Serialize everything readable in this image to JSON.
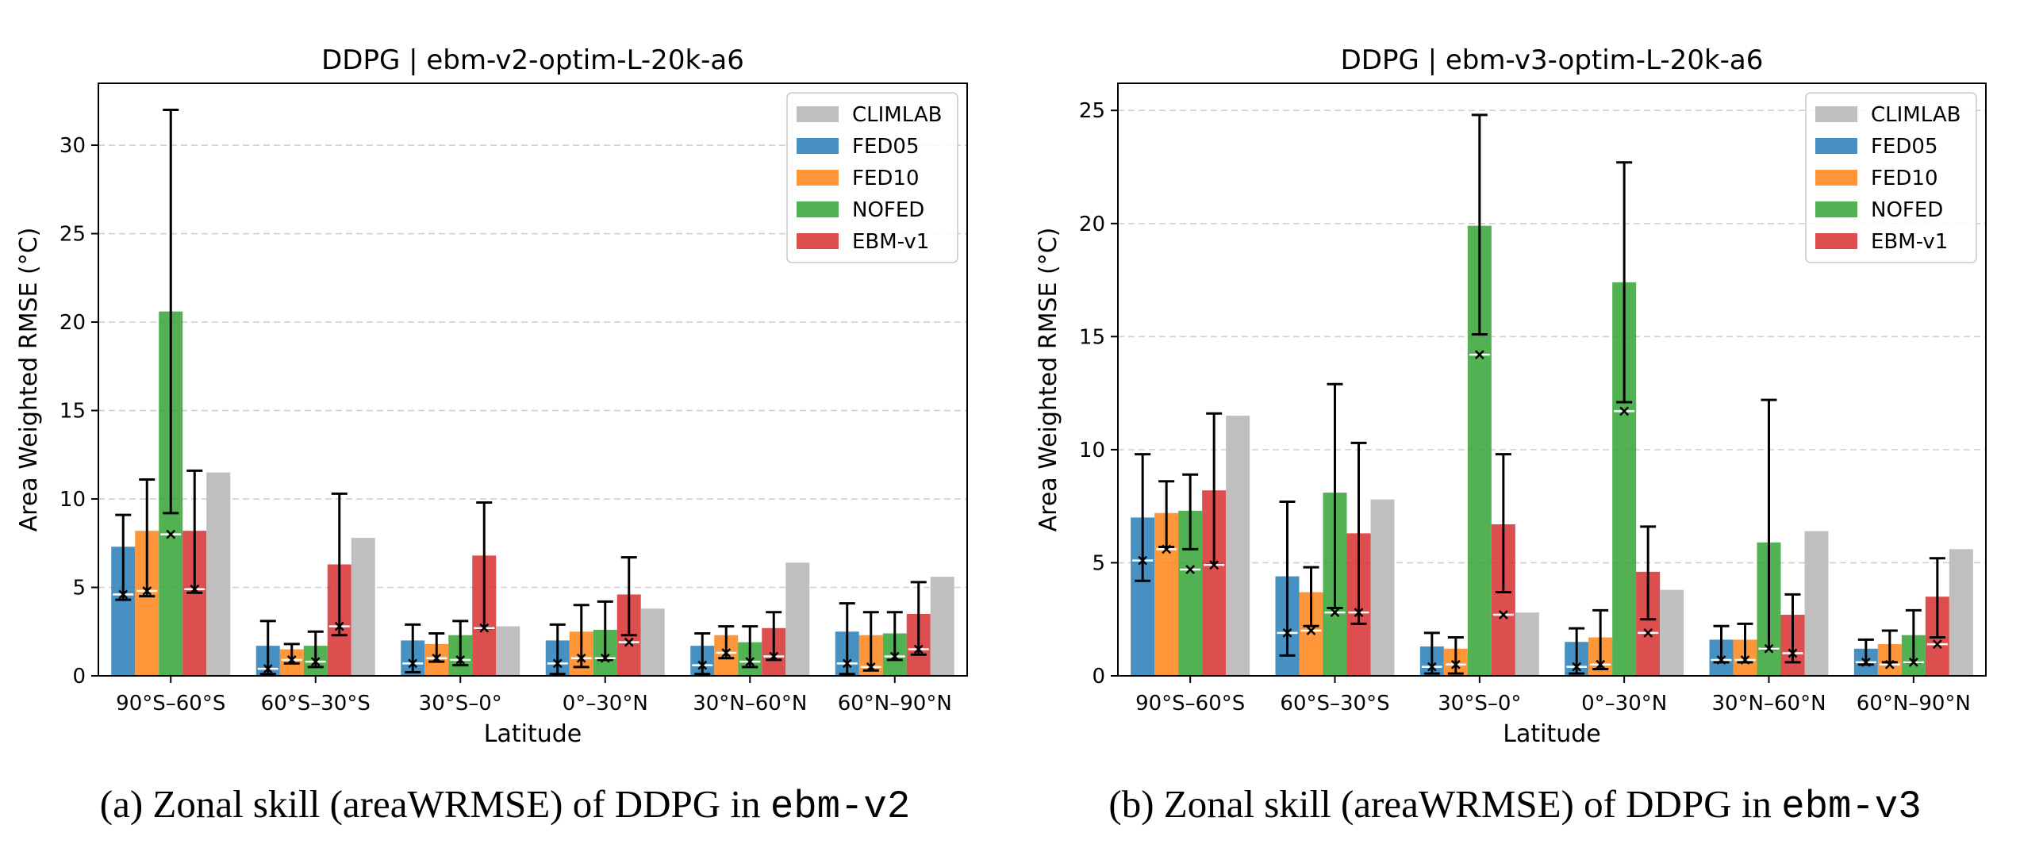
{
  "chart_data": [
    {
      "type": "bar",
      "title": "DDPG | ebm-v2-optim-L-20k-a6",
      "xlabel": "Latitude",
      "ylabel": "Area Weighted RMSE (°C)",
      "ylim": [
        0,
        33.5
      ],
      "yticks": [
        0,
        5,
        10,
        15,
        20,
        25,
        30
      ],
      "grid": "y-dashed",
      "legend_position": "top-right",
      "categories": [
        "90°S–60°S",
        "60°S–30°S",
        "30°S–0°",
        "0°–30°N",
        "30°N–60°N",
        "60°N–90°N"
      ],
      "series": [
        {
          "name": "FED05",
          "color": "#1f77b4",
          "values": [
            7.3,
            1.7,
            2.0,
            2.0,
            1.7,
            2.5
          ],
          "err_low": [
            4.3,
            0.1,
            0.2,
            0.1,
            0.1,
            0.1
          ],
          "err_high": [
            9.1,
            3.1,
            2.9,
            2.9,
            2.4,
            4.1
          ],
          "median": [
            4.6,
            0.4,
            0.7,
            0.7,
            0.6,
            0.7
          ]
        },
        {
          "name": "FED10",
          "color": "#ff7f0e",
          "values": [
            8.2,
            1.5,
            1.8,
            2.5,
            2.3,
            2.3
          ],
          "err_low": [
            4.5,
            0.7,
            0.8,
            0.5,
            1.0,
            0.3
          ],
          "err_high": [
            11.1,
            1.8,
            2.4,
            4.0,
            2.8,
            3.6
          ],
          "median": [
            4.8,
            0.9,
            1.0,
            1.0,
            1.3,
            0.5
          ]
        },
        {
          "name": "NOFED",
          "color": "#2ca02c",
          "values": [
            20.6,
            1.7,
            2.3,
            2.6,
            1.9,
            2.4
          ],
          "err_low": [
            9.2,
            0.5,
            0.6,
            0.9,
            0.5,
            0.9
          ],
          "err_high": [
            32.0,
            2.5,
            3.1,
            4.2,
            2.8,
            3.6
          ],
          "median": [
            8.0,
            0.8,
            0.9,
            1.0,
            0.8,
            1.1
          ]
        },
        {
          "name": "EBM-v1",
          "color": "#d62728",
          "values": [
            8.2,
            6.3,
            6.8,
            4.6,
            2.7,
            3.5
          ],
          "err_low": [
            4.7,
            2.3,
            2.7,
            2.3,
            0.9,
            1.2
          ],
          "err_high": [
            11.6,
            10.3,
            9.8,
            6.7,
            3.6,
            5.3
          ],
          "median": [
            4.9,
            2.8,
            2.7,
            1.9,
            1.1,
            1.5
          ]
        },
        {
          "name": "CLIMLAB",
          "color": "#bfbfbf",
          "values": [
            11.5,
            7.8,
            2.8,
            3.8,
            6.4,
            5.6
          ]
        }
      ]
    },
    {
      "type": "bar",
      "title": "DDPG | ebm-v3-optim-L-20k-a6",
      "xlabel": "Latitude",
      "ylabel": "Area Weighted RMSE (°C)",
      "ylim": [
        0,
        26.2
      ],
      "yticks": [
        0,
        5,
        10,
        15,
        20,
        25
      ],
      "grid": "y-dashed",
      "legend_position": "top-right",
      "categories": [
        "90°S–60°S",
        "60°S–30°S",
        "30°S–0°",
        "0°–30°N",
        "30°N–60°N",
        "60°N–90°N"
      ],
      "series": [
        {
          "name": "FED05",
          "color": "#1f77b4",
          "values": [
            7.0,
            4.4,
            1.3,
            1.5,
            1.6,
            1.2
          ],
          "err_low": [
            4.2,
            0.9,
            0.1,
            0.1,
            0.6,
            0.5
          ],
          "err_high": [
            9.8,
            7.7,
            1.9,
            2.1,
            2.2,
            1.6
          ],
          "median": [
            5.1,
            1.9,
            0.4,
            0.4,
            0.7,
            0.6
          ]
        },
        {
          "name": "FED10",
          "color": "#ff7f0e",
          "values": [
            7.2,
            3.7,
            1.2,
            1.7,
            1.6,
            1.4
          ],
          "err_low": [
            5.7,
            2.2,
            0.1,
            0.3,
            0.6,
            0.6
          ],
          "err_high": [
            8.6,
            4.8,
            1.7,
            2.9,
            2.3,
            2.0
          ],
          "median": [
            5.6,
            2.0,
            0.5,
            0.5,
            0.7,
            0.5
          ]
        },
        {
          "name": "NOFED",
          "color": "#2ca02c",
          "values": [
            7.3,
            8.1,
            19.9,
            17.4,
            5.9,
            1.8
          ],
          "err_low": [
            5.6,
            3.0,
            15.1,
            12.1,
            1.2,
            0.6
          ],
          "err_high": [
            8.9,
            12.9,
            24.8,
            22.7,
            12.2,
            2.9
          ],
          "median": [
            4.7,
            2.8,
            14.2,
            11.7,
            1.2,
            0.6
          ]
        },
        {
          "name": "EBM-v1",
          "color": "#d62728",
          "values": [
            8.2,
            6.3,
            6.7,
            4.6,
            2.7,
            3.5
          ],
          "err_low": [
            4.9,
            2.3,
            3.7,
            2.5,
            0.6,
            1.7
          ],
          "err_high": [
            11.6,
            10.3,
            9.8,
            6.6,
            3.6,
            5.2
          ],
          "median": [
            4.9,
            2.8,
            2.7,
            1.9,
            1.0,
            1.4
          ]
        },
        {
          "name": "CLIMLAB",
          "color": "#bfbfbf",
          "values": [
            11.5,
            7.8,
            2.8,
            3.8,
            6.4,
            5.6
          ]
        }
      ]
    }
  ],
  "legend_order": [
    "CLIMLAB",
    "FED05",
    "FED10",
    "NOFED",
    "EBM-v1"
  ],
  "captions": [
    {
      "prefix": "(a) Zonal skill (areaWRMSE) of DDPG in ",
      "code": "ebm-v2"
    },
    {
      "prefix": "(b) Zonal skill (areaWRMSE) of DDPG in ",
      "code": "ebm-v3"
    }
  ]
}
